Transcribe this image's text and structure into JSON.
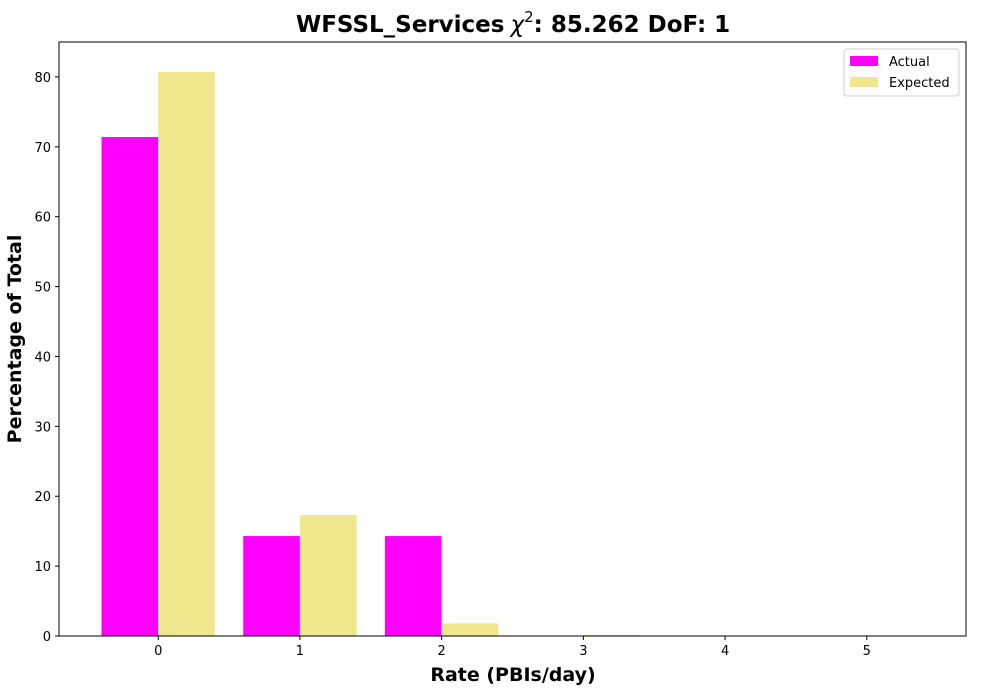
{
  "chart_data": {
    "type": "bar",
    "title": "WFSSL_Services",
    "title_stat_symbol": "χ",
    "title_stat_exponent": "2",
    "title_stat_rest": ": 85.262 DoF: 1",
    "xlabel": "Rate (PBIs/day)",
    "ylabel": "Percentage of Total",
    "categories": [
      "0",
      "1",
      "2",
      "3",
      "4",
      "5"
    ],
    "x": [
      0,
      1,
      2,
      3,
      4,
      5
    ],
    "xlim": [
      -0.7,
      5.7
    ],
    "ylim": [
      0,
      85
    ],
    "yticks": [
      0,
      10,
      20,
      30,
      40,
      50,
      60,
      70,
      80
    ],
    "grid": false,
    "legend_position": "top-right",
    "series": [
      {
        "name": "Actual",
        "color": "#ff00ff",
        "values": [
          71.4,
          14.3,
          14.3,
          0,
          0,
          0
        ]
      },
      {
        "name": "Expected",
        "color": "#f0e68c",
        "values": [
          80.7,
          17.3,
          1.8,
          0.15,
          0.01,
          0
        ]
      }
    ]
  }
}
